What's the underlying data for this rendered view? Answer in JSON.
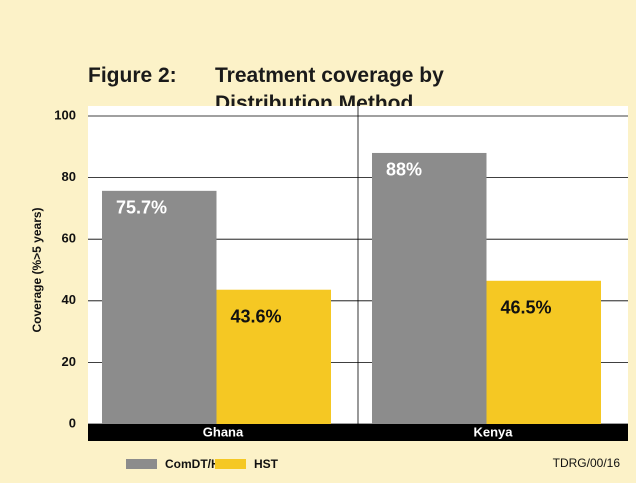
{
  "chart_data": {
    "type": "bar",
    "title_label": "Figure 2:",
    "title": "Treatment coverage by Distribution Method",
    "y_label": "Coverage (%>5 years)",
    "categories": [
      "Ghana",
      "Kenya"
    ],
    "series": [
      {
        "name": "ComDT/HS",
        "color": "#8c8c8c",
        "values": [
          75.7,
          88
        ],
        "value_labels": [
          "75.7%",
          "88%"
        ]
      },
      {
        "name": "HST",
        "color": "#f5c823",
        "values": [
          43.6,
          46.5
        ],
        "value_labels": [
          "43.6%",
          "46.5%"
        ]
      }
    ],
    "ylim": [
      0,
      100
    ],
    "yticks": [
      0,
      20,
      40,
      60,
      80,
      100
    ],
    "grid": true,
    "note": "TDRG/00/16"
  }
}
